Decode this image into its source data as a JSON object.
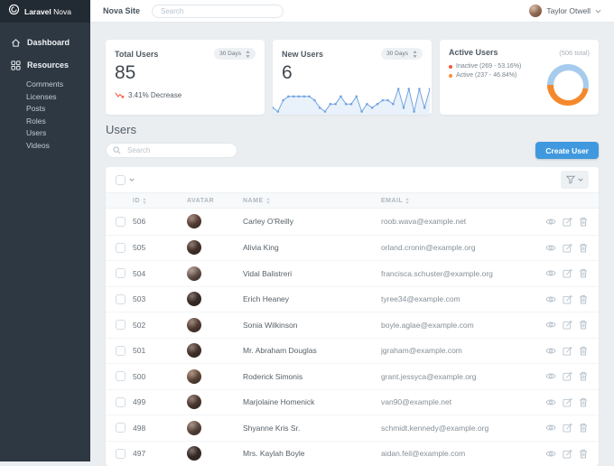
{
  "colors": {
    "accent": "#4099DE",
    "danger": "#F5573B",
    "warning": "#F99037",
    "spark_line": "#74A4DF",
    "spark_fill": "#E9F2FA",
    "donut_inactive": "#A6CBED",
    "donut_active": "#F4892C",
    "avatar_palette": [
      "#8A5F4D",
      "#5C4033",
      "#A8887A",
      "#46322B",
      "#7B5A48",
      "#5D4037",
      "#9C7258",
      "#6E4F43",
      "#8F6F5F",
      "#3F2F2A"
    ]
  },
  "brand": {
    "primary": "Laravel",
    "secondary": "Nova"
  },
  "header": {
    "site_link": "Nova Site",
    "search_placeholder": "Search",
    "user_name": "Taylor Otwell"
  },
  "sidebar": {
    "dashboard_label": "Dashboard",
    "resources_label": "Resources",
    "resources": [
      "Comments",
      "Licenses",
      "Posts",
      "Roles",
      "Users",
      "Videos"
    ]
  },
  "metrics": {
    "total_users": {
      "title": "Total Users",
      "range": "30 Days",
      "value": "85",
      "delta": "3.41% Decrease"
    },
    "new_users": {
      "title": "New Users",
      "range": "30 Days",
      "value": "6",
      "spark": [
        1,
        0,
        3,
        4,
        4,
        4,
        4,
        4,
        3,
        1,
        0,
        2,
        2,
        4,
        2,
        2,
        4,
        0,
        2,
        1,
        2,
        3,
        3,
        2,
        6,
        1,
        6,
        0,
        6,
        1,
        6
      ],
      "spark_max": 6
    },
    "active_users": {
      "title": "Active Users",
      "total_label": "(506 total)",
      "legend": [
        {
          "label": "Inactive (269 - 53.16%)",
          "color": "#F5573B",
          "pct": 53.16
        },
        {
          "label": "Active (237 - 46.84%)",
          "color": "#F99037",
          "pct": 46.84
        }
      ]
    }
  },
  "resource": {
    "title": "Users",
    "search_placeholder": "Search",
    "create_label": "Create User"
  },
  "table": {
    "columns": [
      {
        "label": "ID",
        "sortable": true
      },
      {
        "label": "AVATAR",
        "sortable": false
      },
      {
        "label": "NAME",
        "sortable": true
      },
      {
        "label": "EMAIL",
        "sortable": true
      }
    ],
    "rows": [
      {
        "id": "506",
        "name": "Carley O'Reilly",
        "email": "roob.wava@example.net"
      },
      {
        "id": "505",
        "name": "Alivia King",
        "email": "orland.cronin@example.org"
      },
      {
        "id": "504",
        "name": "Vidal Balistreri",
        "email": "francisca.schuster@example.org"
      },
      {
        "id": "503",
        "name": "Erich Heaney",
        "email": "tyree34@example.com"
      },
      {
        "id": "502",
        "name": "Sonia Wilkinson",
        "email": "boyle.aglae@example.com"
      },
      {
        "id": "501",
        "name": "Mr. Abraham Douglas",
        "email": "jgraham@example.com"
      },
      {
        "id": "500",
        "name": "Roderick Simonis",
        "email": "grant.jessyca@example.org"
      },
      {
        "id": "499",
        "name": "Marjolaine Homenick",
        "email": "van90@example.net"
      },
      {
        "id": "498",
        "name": "Shyanne Kris Sr.",
        "email": "schmidt.kennedy@example.org"
      },
      {
        "id": "497",
        "name": "Mrs. Kaylah Boyle",
        "email": "aidan.feil@example.com"
      }
    ]
  }
}
